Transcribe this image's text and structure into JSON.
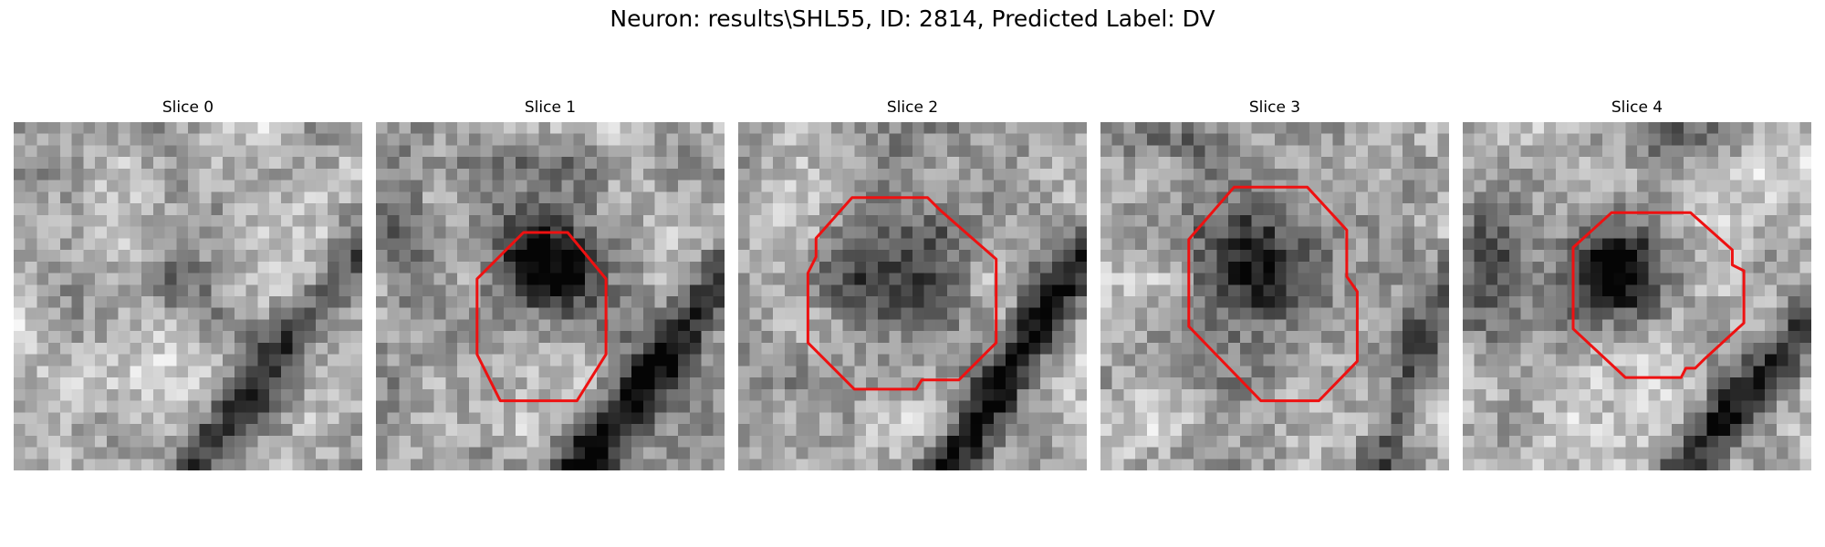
{
  "figure": {
    "title": "Neuron: results\\SHL55, ID: 2814, Predicted Label: DV"
  },
  "panels": [
    {
      "title": "Slice 0"
    },
    {
      "title": "Slice 1"
    },
    {
      "title": "Slice 2"
    },
    {
      "title": "Slice 3"
    },
    {
      "title": "Slice 4"
    }
  ],
  "colors": {
    "roi_outline": "#ee1111",
    "background": "#ffffff"
  }
}
